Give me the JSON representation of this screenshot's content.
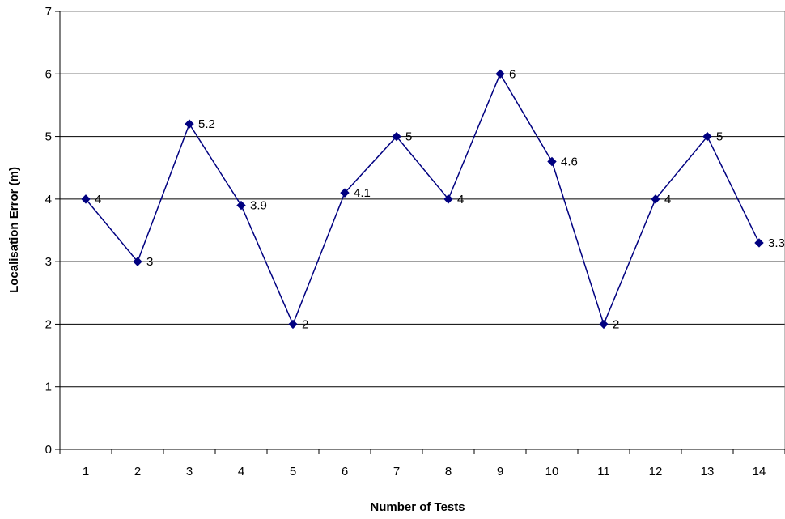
{
  "chart_data": {
    "type": "line",
    "title": "",
    "xlabel": "Number of Tests",
    "ylabel": "Localisation Error (m)",
    "categories": [
      "1",
      "2",
      "3",
      "4",
      "5",
      "6",
      "7",
      "8",
      "9",
      "10",
      "11",
      "12",
      "13",
      "14"
    ],
    "series": [
      {
        "values": [
          4,
          3,
          5.2,
          3.9,
          2,
          4.1,
          5,
          4,
          6,
          4.6,
          2,
          4,
          5,
          3.3
        ]
      }
    ],
    "data_labels": [
      "4",
      "3",
      "5.2",
      "3.9",
      "2",
      "4.1",
      "5",
      "4",
      "6",
      "4.6",
      "2",
      "4",
      "5",
      "3.3"
    ],
    "ylim": [
      0,
      7
    ],
    "yticks": [
      "0",
      "1",
      "2",
      "3",
      "4",
      "5",
      "6",
      "7"
    ],
    "grid": "horizontal",
    "legend": "none",
    "line_color": "#000080",
    "marker": "diamond"
  }
}
